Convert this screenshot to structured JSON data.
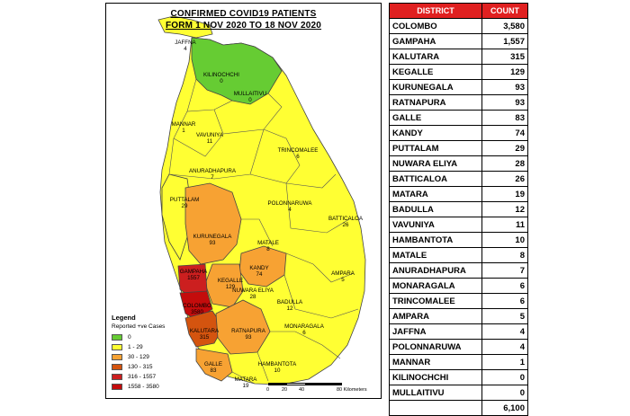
{
  "map": {
    "title_line1": "CONFIRMED COVID19 PATIENTS",
    "title_line2": "FORM 1 NOV 2020 TO 18 NOV 2020",
    "districts": [
      {
        "name": "JAFFNA",
        "count": "4"
      },
      {
        "name": "KILINOCHCHI",
        "count": "0"
      },
      {
        "name": "MULLAITIVU",
        "count": "0"
      },
      {
        "name": "MANNAR",
        "count": "1"
      },
      {
        "name": "VAVUNIYA",
        "count": "11"
      },
      {
        "name": "TRINCOMALEE",
        "count": "6"
      },
      {
        "name": "ANURADHAPURA",
        "count": "7"
      },
      {
        "name": "PUTTALAM",
        "count": "29"
      },
      {
        "name": "POLONNARUWA",
        "count": "4"
      },
      {
        "name": "BATTICALOA",
        "count": "26"
      },
      {
        "name": "KURUNEGALA",
        "count": "93"
      },
      {
        "name": "MATALE",
        "count": "8"
      },
      {
        "name": "KANDY",
        "count": "74"
      },
      {
        "name": "GAMPAHA",
        "count": "1557"
      },
      {
        "name": "KEGALLE",
        "count": "129"
      },
      {
        "name": "NUWARA ELIYA",
        "count": "28"
      },
      {
        "name": "BADULLA",
        "count": "12"
      },
      {
        "name": "AMPARA",
        "count": "5"
      },
      {
        "name": "COLOMBO",
        "count": "3580"
      },
      {
        "name": "KALUTARA",
        "count": "315"
      },
      {
        "name": "RATNAPURA",
        "count": "93"
      },
      {
        "name": "MONARAGALA",
        "count": "6"
      },
      {
        "name": "GALLE",
        "count": "83"
      },
      {
        "name": "MATARA",
        "count": "19"
      },
      {
        "name": "HAMBANTOTA",
        "count": "10"
      }
    ],
    "legend": {
      "title": "Legend",
      "subtitle": "Reported +ve Cases",
      "items": [
        {
          "label": "0",
          "color": "#66cc33"
        },
        {
          "label": "1 - 29",
          "color": "#ffff33"
        },
        {
          "label": "30 - 129",
          "color": "#f7a233"
        },
        {
          "label": "130 - 315",
          "color": "#d4540f"
        },
        {
          "label": "316 - 1557",
          "color": "#cc1f1f"
        },
        {
          "label": "1558 - 3580",
          "color": "#c40c0c"
        }
      ]
    },
    "scale": {
      "ticks": [
        "0",
        "20",
        "40",
        "80 Kilometers"
      ]
    }
  },
  "table": {
    "headers": [
      "DISTRICT",
      "COUNT"
    ],
    "rows": [
      {
        "district": "COLOMBO",
        "count": "3,580"
      },
      {
        "district": "GAMPAHA",
        "count": "1,557"
      },
      {
        "district": "KALUTARA",
        "count": "315"
      },
      {
        "district": "KEGALLE",
        "count": "129"
      },
      {
        "district": "KURUNEGALA",
        "count": "93"
      },
      {
        "district": "RATNAPURA",
        "count": "93"
      },
      {
        "district": "GALLE",
        "count": "83"
      },
      {
        "district": "KANDY",
        "count": "74"
      },
      {
        "district": "PUTTALAM",
        "count": "29"
      },
      {
        "district": "NUWARA ELIYA",
        "count": "28"
      },
      {
        "district": "BATTICALOA",
        "count": "26"
      },
      {
        "district": "MATARA",
        "count": "19"
      },
      {
        "district": "BADULLA",
        "count": "12"
      },
      {
        "district": "VAVUNIYA",
        "count": "11"
      },
      {
        "district": "HAMBANTOTA",
        "count": "10"
      },
      {
        "district": "MATALE",
        "count": "8"
      },
      {
        "district": "ANURADHAPURA",
        "count": "7"
      },
      {
        "district": "MONARAGALA",
        "count": "6"
      },
      {
        "district": "TRINCOMALEE",
        "count": "6"
      },
      {
        "district": "AMPARA",
        "count": "5"
      },
      {
        "district": "JAFFNA",
        "count": "4"
      },
      {
        "district": "POLONNARUWA",
        "count": "4"
      },
      {
        "district": "MANNAR",
        "count": "1"
      },
      {
        "district": "KILINOCHCHI",
        "count": "0"
      },
      {
        "district": "MULLAITIVU",
        "count": "0"
      }
    ],
    "total": "6,100"
  }
}
